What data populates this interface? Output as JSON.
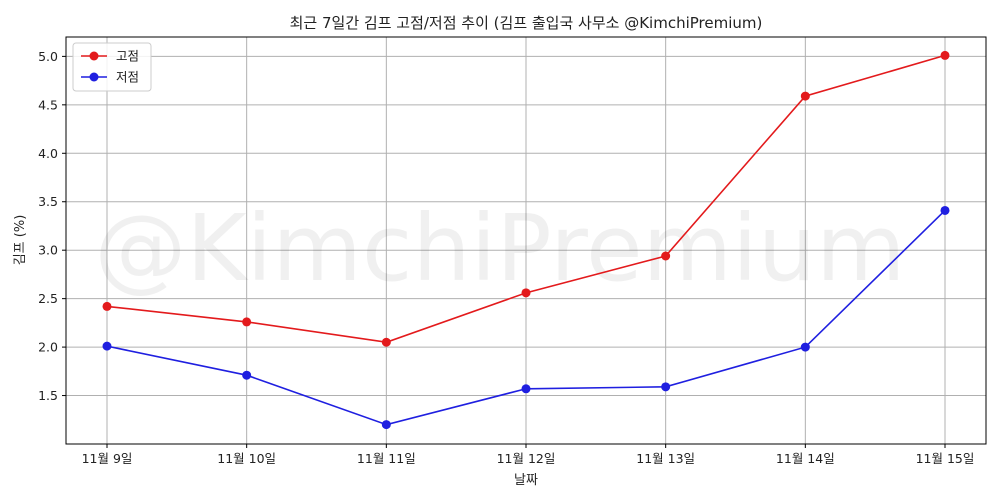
{
  "chart_data": {
    "type": "line",
    "title": "최근 7일간 김프 고점/저점 추이 (김프 출입국 사무소 @KimchiPremium)",
    "xlabel": "날짜",
    "ylabel": "김프 (%)",
    "categories": [
      "11월 9일",
      "11월 10일",
      "11월 11일",
      "11월 12일",
      "11월 13일",
      "11월 14일",
      "11월 15일"
    ],
    "series": [
      {
        "name": "고점",
        "color": "#e31a1c",
        "values": [
          2.42,
          2.26,
          2.05,
          2.56,
          2.94,
          4.59,
          5.01
        ]
      },
      {
        "name": "저점",
        "color": "#1f1fe0",
        "values": [
          2.01,
          1.71,
          1.2,
          1.57,
          1.59,
          2.0,
          3.41
        ]
      }
    ],
    "ylim": [
      1.0,
      5.2
    ],
    "yticks": [
      1.5,
      2.0,
      2.5,
      3.0,
      3.5,
      4.0,
      4.5,
      5.0
    ],
    "ytick_labels": [
      "1.5",
      "2.0",
      "2.5",
      "3.0",
      "3.5",
      "4.0",
      "4.5",
      "5.0"
    ],
    "grid": true,
    "legend": "top-left",
    "marker": "circle",
    "watermark": "@KimchiPremium"
  }
}
